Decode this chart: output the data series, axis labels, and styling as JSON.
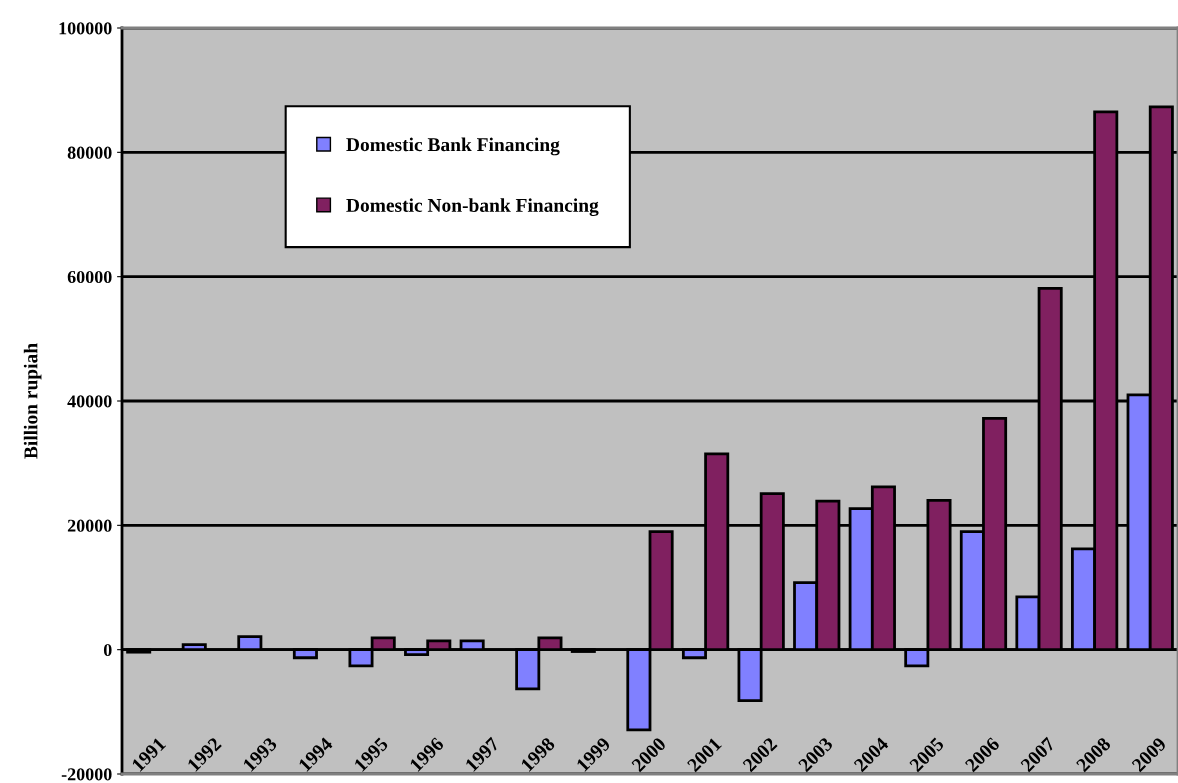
{
  "chart_data": {
    "type": "bar",
    "categories": [
      "1991",
      "1992",
      "1993",
      "1994",
      "1995",
      "1996",
      "1997",
      "1998",
      "1999",
      "2000",
      "2001",
      "2002",
      "2003",
      "2004",
      "2005",
      "2006",
      "2007",
      "2008",
      "2009"
    ],
    "series": [
      {
        "name": "Domestic Bank Financing",
        "color": "#8080ff",
        "values": [
          -400,
          800,
          2100,
          -1300,
          -2600,
          -800,
          1400,
          -6300,
          -300,
          -12900,
          -1300,
          -8200,
          10800,
          22700,
          -2600,
          19000,
          8500,
          16200,
          41000
        ]
      },
      {
        "name": "Domestic Non-bank Financing",
        "color": "#802060",
        "values": [
          0,
          0,
          0,
          0,
          1900,
          1400,
          0,
          1900,
          0,
          19000,
          31500,
          25100,
          23900,
          26200,
          24000,
          37200,
          58100,
          86500,
          87300
        ]
      }
    ],
    "ylabel": "Billion rupiah",
    "ylim": [
      -20000,
      100000
    ],
    "yticks": [
      -20000,
      0,
      20000,
      40000,
      60000,
      80000,
      100000
    ],
    "grid": "y",
    "legend": "top left"
  }
}
